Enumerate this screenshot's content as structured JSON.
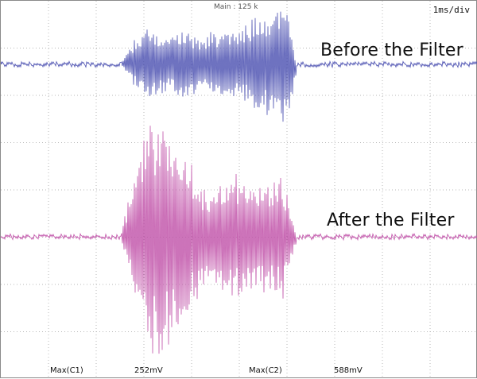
{
  "header": {
    "acquisition": "Main : 125 k",
    "timebase": "1ms/div"
  },
  "traces": [
    {
      "label": "Before the Filter",
      "color": "#4a4fb0"
    },
    {
      "label": "After the Filter",
      "color": "#c050a8"
    }
  ],
  "measurements": [
    {
      "name": "Max(C1)",
      "value": "252mV"
    },
    {
      "name": "Max(C2)",
      "value": "588mV"
    }
  ],
  "grid": {
    "color": "#b8b8b8"
  }
}
